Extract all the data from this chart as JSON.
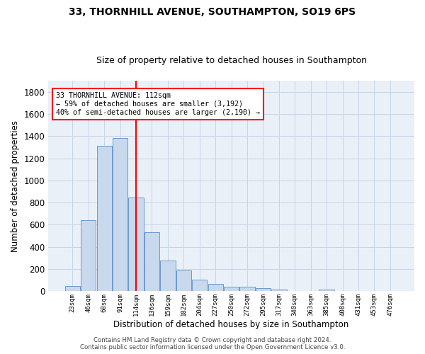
{
  "title": "33, THORNHILL AVENUE, SOUTHAMPTON, SO19 6PS",
  "subtitle": "Size of property relative to detached houses in Southampton",
  "xlabel": "Distribution of detached houses by size in Southampton",
  "ylabel": "Number of detached properties",
  "bar_color": "#c9d9ed",
  "bar_edge_color": "#5b8fc9",
  "grid_color": "#c8d4e8",
  "background_color": "#eaf0f8",
  "vline_color": "red",
  "annotation_line1": "33 THORNHILL AVENUE: 112sqm",
  "annotation_line2": "← 59% of detached houses are smaller (3,192)",
  "annotation_line3": "40% of semi-detached houses are larger (2,190) →",
  "annotation_box_color": "red",
  "footer_line1": "Contains HM Land Registry data © Crown copyright and database right 2024.",
  "footer_line2": "Contains public sector information licensed under the Open Government Licence v3.0.",
  "categories": [
    "23sqm",
    "46sqm",
    "68sqm",
    "91sqm",
    "114sqm",
    "136sqm",
    "159sqm",
    "182sqm",
    "204sqm",
    "227sqm",
    "250sqm",
    "272sqm",
    "295sqm",
    "317sqm",
    "340sqm",
    "363sqm",
    "385sqm",
    "408sqm",
    "431sqm",
    "453sqm",
    "476sqm"
  ],
  "values": [
    50,
    640,
    1310,
    1380,
    848,
    530,
    275,
    185,
    105,
    65,
    38,
    38,
    28,
    15,
    0,
    0,
    15,
    0,
    0,
    0,
    0
  ],
  "ylim": [
    0,
    1900
  ],
  "yticks": [
    0,
    200,
    400,
    600,
    800,
    1000,
    1200,
    1400,
    1600,
    1800
  ],
  "vline_index": 4,
  "title_fontsize": 10,
  "subtitle_fontsize": 9
}
